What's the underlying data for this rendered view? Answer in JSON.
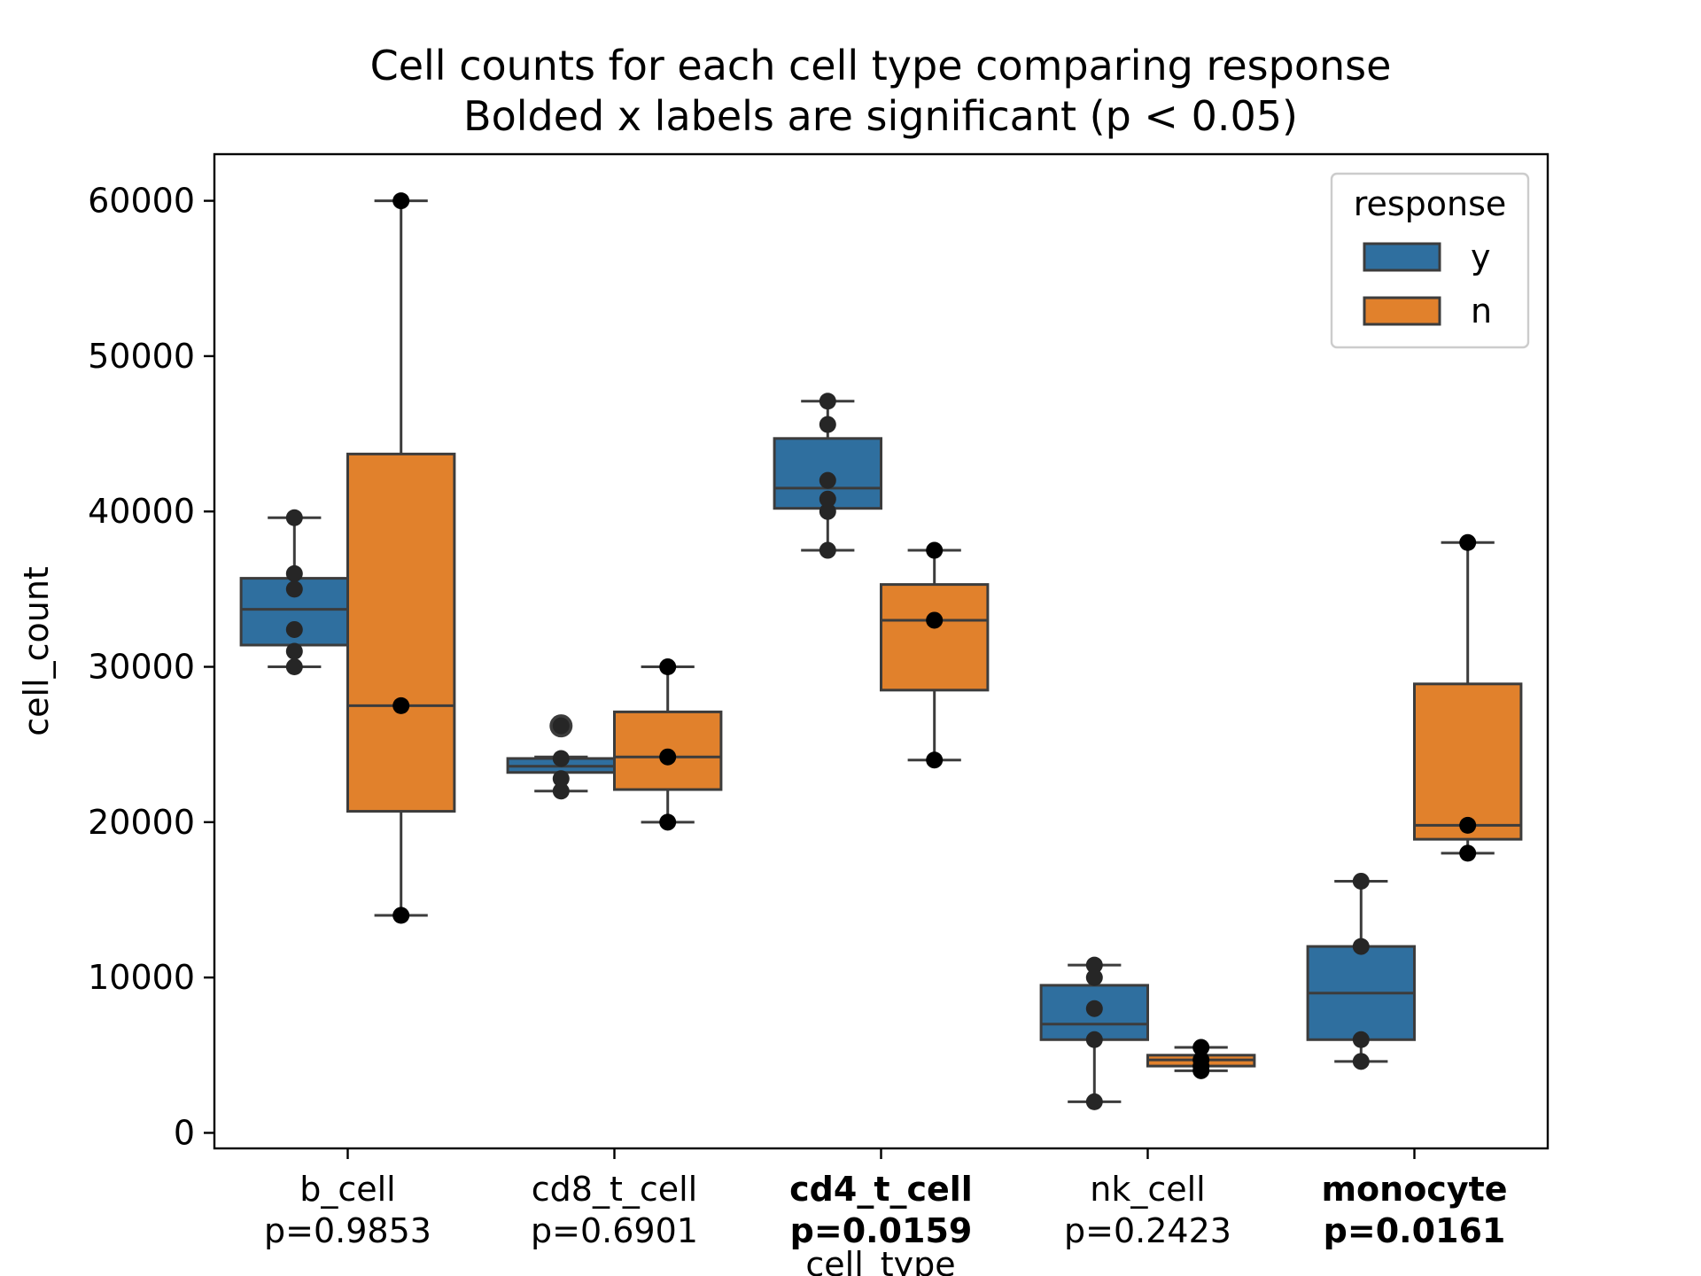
{
  "chart_data": {
    "type": "box",
    "title": "Cell counts for each cell type comparing response",
    "subtitle": "Bolded x labels are significant (p < 0.05)",
    "xlabel": "cell_type",
    "ylabel": "cell_count",
    "ylim": [
      -1000,
      63000
    ],
    "yticks": [
      0,
      10000,
      20000,
      30000,
      40000,
      50000,
      60000
    ],
    "grid": false,
    "legend": {
      "title": "response",
      "placement": "top-right"
    },
    "categories": [
      {
        "name": "b_cell",
        "p": "p=0.9853",
        "bold": false
      },
      {
        "name": "cd8_t_cell",
        "p": "p=0.6901",
        "bold": false
      },
      {
        "name": "cd4_t_cell",
        "p": "p=0.0159",
        "bold": true
      },
      {
        "name": "nk_cell",
        "p": "p=0.2423",
        "bold": false
      },
      {
        "name": "monocyte",
        "p": "p=0.0161",
        "bold": true
      }
    ],
    "series": [
      {
        "name": "y",
        "color": "#2f6f9f",
        "boxes": [
          {
            "whisker_low": 30000,
            "q1": 31400,
            "median": 33700,
            "q3": 35700,
            "whisker_high": 39600,
            "outliers": [],
            "points": [
              30000,
              31000,
              32400,
              35000,
              36000,
              39600
            ]
          },
          {
            "whisker_low": 22000,
            "q1": 23200,
            "median": 23600,
            "q3": 24100,
            "whisker_high": 24200,
            "outliers": [
              26200
            ],
            "points": [
              22000,
              22800,
              24100,
              26200
            ]
          },
          {
            "whisker_low": 37500,
            "q1": 40200,
            "median": 41500,
            "q3": 44700,
            "whisker_high": 47100,
            "outliers": [],
            "points": [
              37500,
              40000,
              40800,
              42000,
              45600,
              47100
            ]
          },
          {
            "whisker_low": 2000,
            "q1": 6000,
            "median": 7000,
            "q3": 9500,
            "whisker_high": 10800,
            "outliers": [],
            "points": [
              2000,
              6000,
              8000,
              10000,
              10800
            ]
          },
          {
            "whisker_low": 4600,
            "q1": 6000,
            "median": 9000,
            "q3": 12000,
            "whisker_high": 16200,
            "outliers": [],
            "points": [
              4600,
              6000,
              12000,
              16200
            ]
          }
        ]
      },
      {
        "name": "n",
        "color": "#e1812c",
        "boxes": [
          {
            "whisker_low": 14000,
            "q1": 20700,
            "median": 27500,
            "q3": 43700,
            "whisker_high": 60000,
            "outliers": [],
            "points": [
              14000,
              27500,
              60000
            ]
          },
          {
            "whisker_low": 20000,
            "q1": 22100,
            "median": 24200,
            "q3": 27100,
            "whisker_high": 30000,
            "outliers": [],
            "points": [
              20000,
              24200,
              30000
            ]
          },
          {
            "whisker_low": 24000,
            "q1": 28500,
            "median": 33000,
            "q3": 35300,
            "whisker_high": 37500,
            "outliers": [],
            "points": [
              24000,
              33000,
              37500
            ]
          },
          {
            "whisker_low": 4000,
            "q1": 4300,
            "median": 4700,
            "q3": 5000,
            "whisker_high": 5500,
            "outliers": [],
            "points": [
              4000,
              4300,
              4700,
              5500
            ]
          },
          {
            "whisker_low": 18000,
            "q1": 18900,
            "median": 19800,
            "q3": 28900,
            "whisker_high": 38000,
            "outliers": [],
            "points": [
              18000,
              19800,
              38000
            ]
          }
        ]
      }
    ]
  }
}
